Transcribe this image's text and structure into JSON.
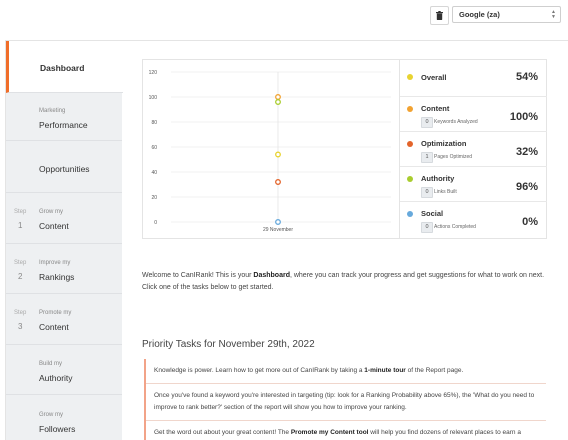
{
  "engine_select": {
    "value": "Google (za)"
  },
  "sidebar": {
    "items": [
      {
        "top": "",
        "main": "Dashboard",
        "step": "",
        "num": ""
      },
      {
        "top": "Marketing",
        "main": "Performance",
        "step": "",
        "num": ""
      },
      {
        "top": "",
        "main": "Opportunities",
        "step": "",
        "num": ""
      },
      {
        "top": "Grow my",
        "main": "Content",
        "step": "Step",
        "num": "1"
      },
      {
        "top": "Improve my",
        "main": "Rankings",
        "step": "Step",
        "num": "2"
      },
      {
        "top": "Promote my",
        "main": "Content",
        "step": "Step",
        "num": "3"
      },
      {
        "top": "Build my",
        "main": "Authority",
        "step": "",
        "num": ""
      },
      {
        "top": "Grow my",
        "main": "Followers",
        "step": "",
        "num": ""
      }
    ]
  },
  "chart_data": {
    "type": "scatter",
    "x_categories": [
      "29 November"
    ],
    "ylim": [
      0,
      120
    ],
    "y_ticks": [
      "0",
      "20",
      "40",
      "60",
      "80",
      "100",
      "120"
    ],
    "series": [
      {
        "name": "Overall",
        "color": "#e8d331",
        "x": "29 November",
        "y": 54
      },
      {
        "name": "Content",
        "color": "#f2a231",
        "x": "29 November",
        "y": 100
      },
      {
        "name": "Optimization",
        "color": "#e3642a",
        "x": "29 November",
        "y": 32
      },
      {
        "name": "Authority",
        "color": "#a9cd2f",
        "x": "29 November",
        "y": 96
      },
      {
        "name": "Social",
        "color": "#67a9dc",
        "x": "29 November",
        "y": 0
      }
    ]
  },
  "metrics": [
    {
      "name": "Overall",
      "value": "54%",
      "color": "#e8d331",
      "badge": "",
      "sub": ""
    },
    {
      "name": "Content",
      "value": "100%",
      "color": "#f2a231",
      "badge": "0",
      "sub": "Keywords Analyzed"
    },
    {
      "name": "Optimization",
      "value": "32%",
      "color": "#e3642a",
      "badge": "1",
      "sub": "Pages Optimized"
    },
    {
      "name": "Authority",
      "value": "96%",
      "color": "#a9cd2f",
      "badge": "0",
      "sub": "Links Built"
    },
    {
      "name": "Social",
      "value": "0%",
      "color": "#67a9dc",
      "badge": "0",
      "sub": "Actions Completed"
    }
  ],
  "welcome": {
    "p1": "Welcome to CanIRank! This is your ",
    "b1": "Dashboard",
    "p2": ", where you can track your progress and get suggestions for what to work on next. Click one of the tasks below to get started."
  },
  "tasks": {
    "title": "Priority Tasks for November 29th, 2022",
    "t1a": "Knowledge is power. Learn how to get more out of CanIRank by taking a ",
    "t1b": "1-minute tour",
    "t1c": " of the Report page.",
    "t2": "Once you've found a keyword you're interested in targeting (tip: look for a Ranking Probability above 65%), the 'What do you need to improve to rank better?' section of the report will show you how to improve your ranking.",
    "t3a": "Get the word out about your great content! The ",
    "t3b": "Promote my Content tool",
    "t3c": " will help you find dozens of relevant places to earn a"
  }
}
